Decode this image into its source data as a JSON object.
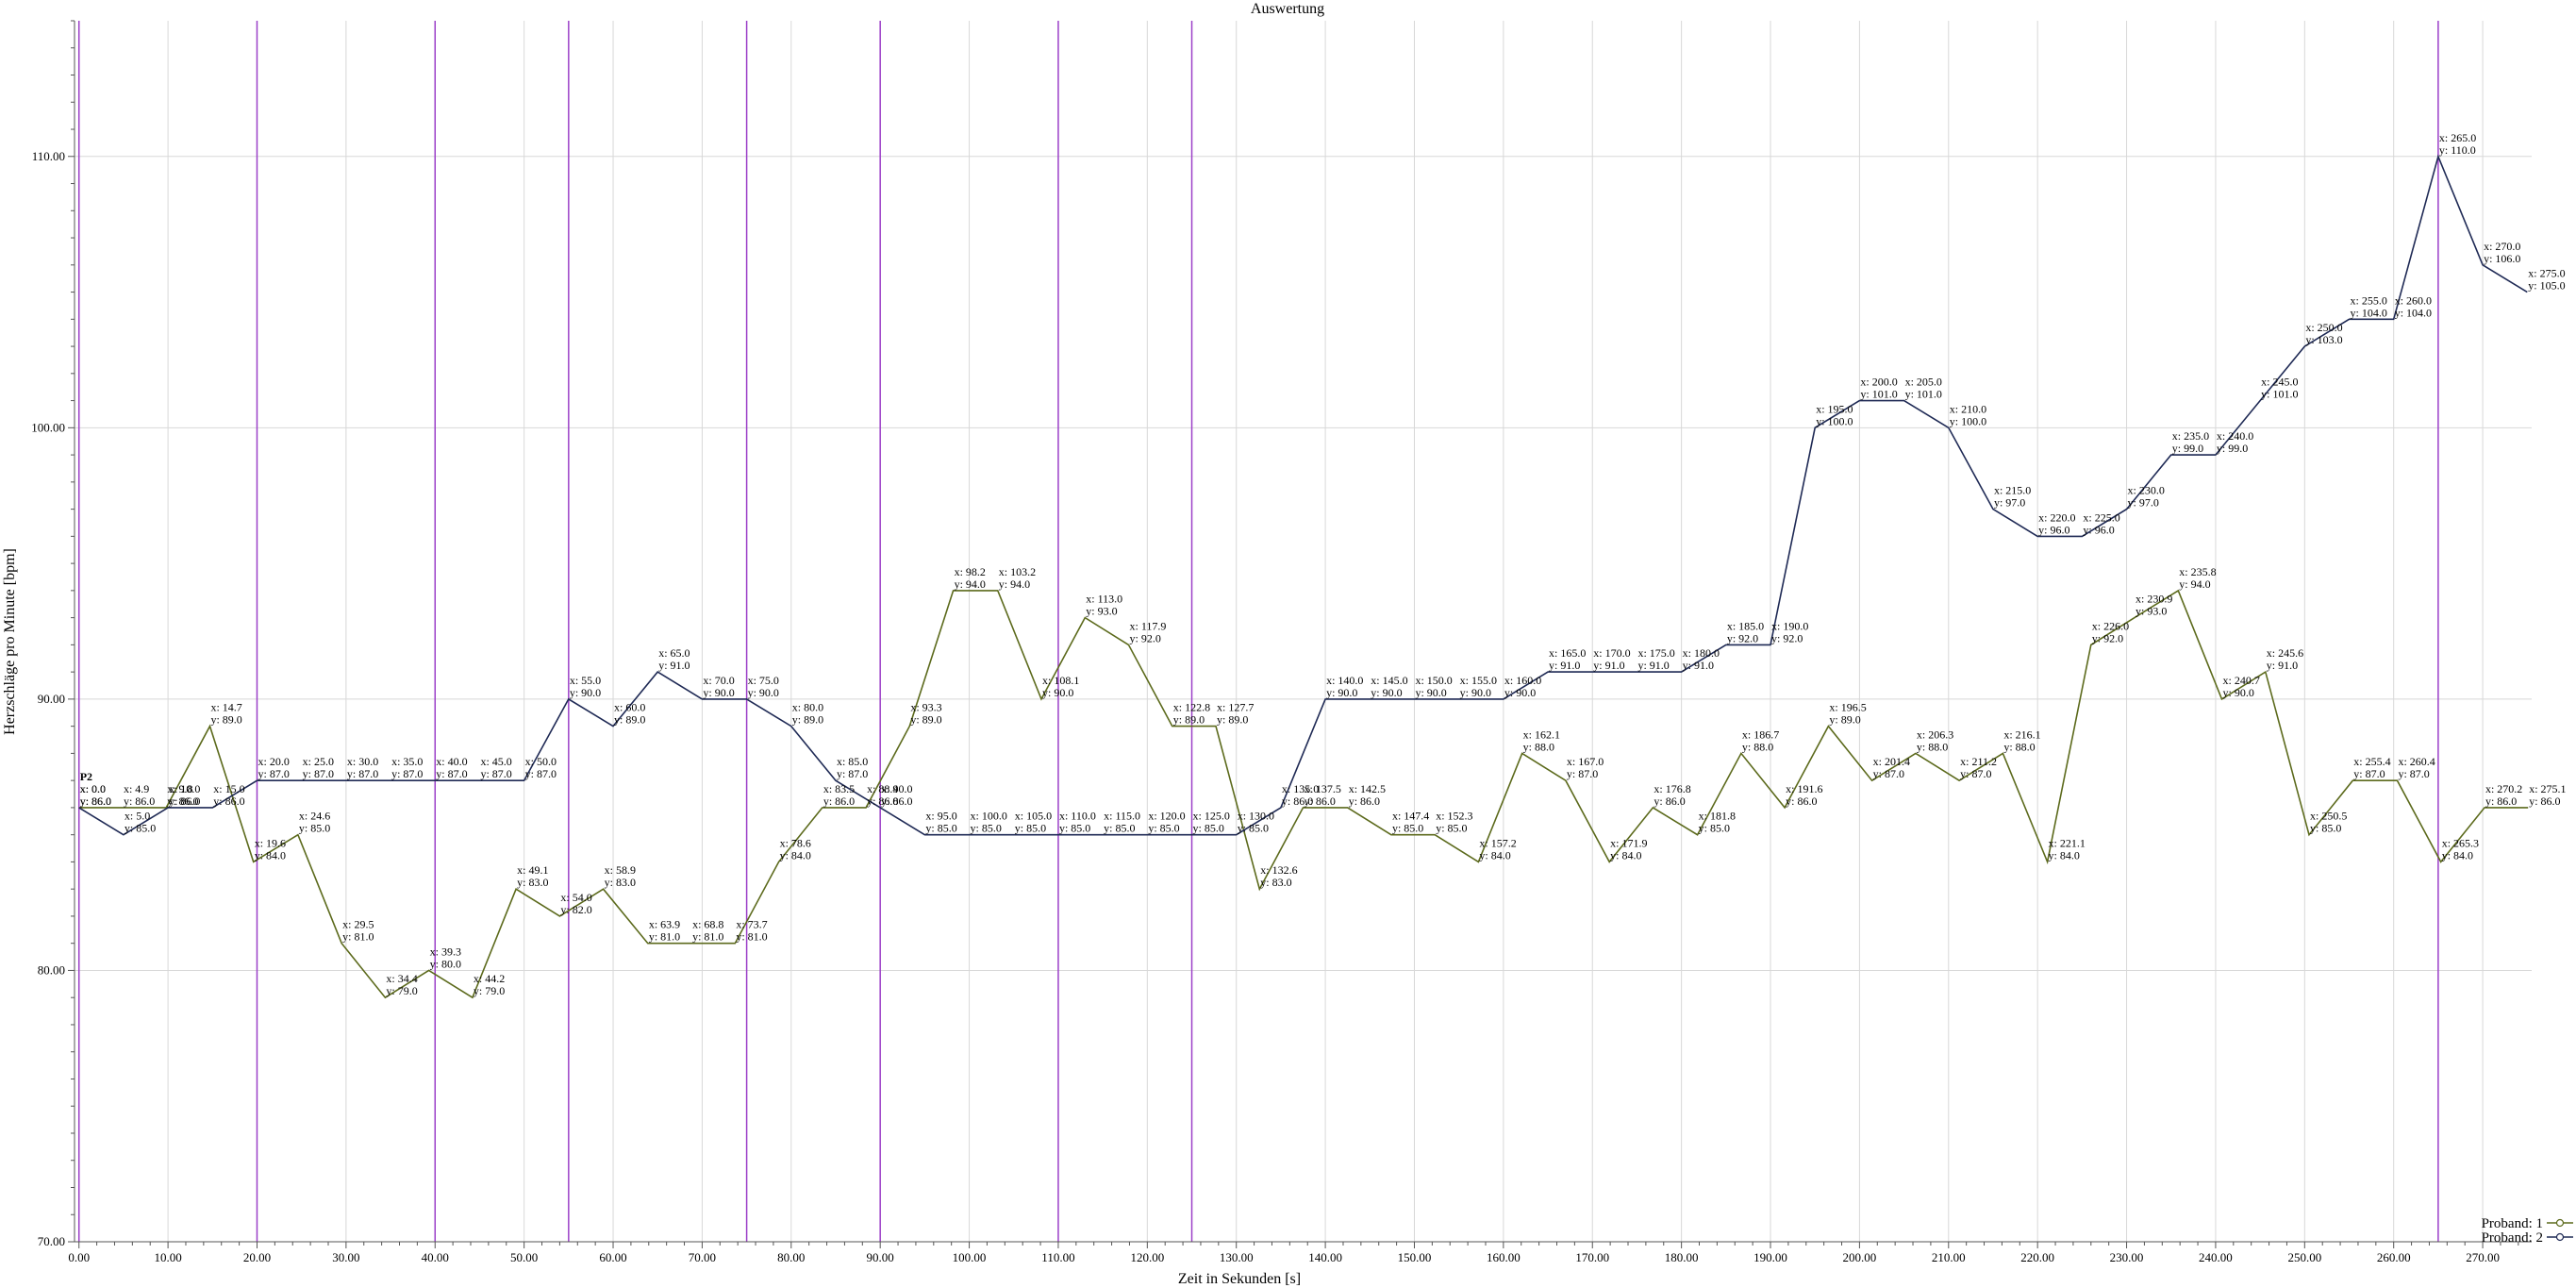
{
  "chart_data": {
    "type": "line",
    "title": "Auswertung",
    "xlabel": "Zeit in Sekunden [s]",
    "ylabel": "Herzschläge pro Minute [bpm]",
    "xlim": [
      -0.5,
      275.5
    ],
    "ylim": [
      70,
      115
    ],
    "x_tick_step": 10,
    "y_ticks": [
      70,
      80,
      90,
      100,
      110
    ],
    "grid": true,
    "legend_position": "bottom-right",
    "start_marker": "P2",
    "marker_lines_x": [
      0.0,
      20.0,
      40.0,
      55.0,
      75.0,
      90.0,
      110.0,
      125.0,
      265.0
    ],
    "marker_line_color": "#9b3fc8",
    "series": [
      {
        "name": "Proband: 1",
        "color": "#5c6a1c",
        "x": [
          0.0,
          4.9,
          9.8,
          14.7,
          19.6,
          24.6,
          29.5,
          34.4,
          39.3,
          44.2,
          49.1,
          54.0,
          58.9,
          63.9,
          68.8,
          73.7,
          78.6,
          83.5,
          88.4,
          93.3,
          98.2,
          103.2,
          108.1,
          113.0,
          117.9,
          122.8,
          127.7,
          132.6,
          137.5,
          142.5,
          147.4,
          152.3,
          157.2,
          162.1,
          167.0,
          171.9,
          176.8,
          181.8,
          186.7,
          191.6,
          196.5,
          201.4,
          206.3,
          211.2,
          216.1,
          221.1,
          226.0,
          230.9,
          235.8,
          240.7,
          245.6,
          250.5,
          255.4,
          260.4,
          265.3,
          270.2,
          275.1
        ],
        "y": [
          86.0,
          86.0,
          86.0,
          89.0,
          84.0,
          85.0,
          81.0,
          79.0,
          80.0,
          79.0,
          83.0,
          82.0,
          83.0,
          81.0,
          81.0,
          81.0,
          84.0,
          86.0,
          86.0,
          89.0,
          94.0,
          94.0,
          90.0,
          93.0,
          92.0,
          89.0,
          89.0,
          83.0,
          86.0,
          86.0,
          85.0,
          85.0,
          84.0,
          88.0,
          87.0,
          84.0,
          86.0,
          85.0,
          88.0,
          86.0,
          89.0,
          87.0,
          88.0,
          87.0,
          88.0,
          84.0,
          92.0,
          93.0,
          94.0,
          90.0,
          91.0,
          85.0,
          87.0,
          87.0,
          84.0,
          86.0,
          86.0
        ]
      },
      {
        "name": "Proband: 2",
        "color": "#1f2a55",
        "x": [
          0.0,
          5.0,
          10.0,
          15.0,
          20.0,
          25.0,
          30.0,
          35.0,
          40.0,
          45.0,
          50.0,
          55.0,
          60.0,
          65.0,
          70.0,
          75.0,
          80.0,
          85.0,
          90.0,
          95.0,
          100.0,
          105.0,
          110.0,
          115.0,
          120.0,
          125.0,
          130.0,
          135.0,
          140.0,
          145.0,
          150.0,
          155.0,
          160.0,
          165.0,
          170.0,
          175.0,
          180.0,
          185.0,
          190.0,
          195.0,
          200.0,
          205.0,
          210.0,
          215.0,
          220.0,
          225.0,
          230.0,
          235.0,
          240.0,
          245.0,
          250.0,
          255.0,
          260.0,
          265.0,
          270.0,
          275.0
        ],
        "y": [
          86.0,
          85.0,
          86.0,
          86.0,
          87.0,
          87.0,
          87.0,
          87.0,
          87.0,
          87.0,
          87.0,
          90.0,
          89.0,
          91.0,
          90.0,
          90.0,
          89.0,
          87.0,
          86.0,
          85.0,
          85.0,
          85.0,
          85.0,
          85.0,
          85.0,
          85.0,
          85.0,
          86.0,
          90.0,
          90.0,
          90.0,
          90.0,
          90.0,
          91.0,
          91.0,
          91.0,
          91.0,
          92.0,
          92.0,
          100.0,
          101.0,
          101.0,
          100.0,
          97.0,
          96.0,
          96.0,
          97.0,
          99.0,
          99.0,
          101.0,
          103.0,
          104.0,
          104.0,
          110.0,
          106.0,
          105.0
        ]
      }
    ]
  }
}
